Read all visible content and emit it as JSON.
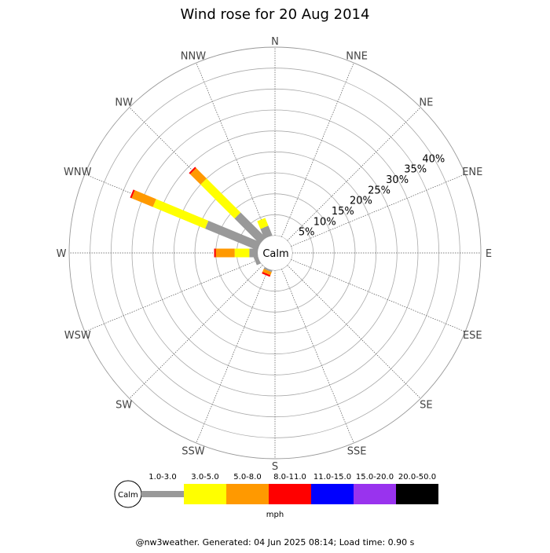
{
  "chart_data": {
    "type": "windrose",
    "title": "Wind rose for 20 Aug 2014",
    "directions": [
      "N",
      "NNE",
      "NE",
      "ENE",
      "E",
      "ESE",
      "SE",
      "SSE",
      "S",
      "SSW",
      "SW",
      "WSW",
      "W",
      "WNW",
      "NW",
      "NNW"
    ],
    "ring_labels": [
      "5%",
      "10%",
      "15%",
      "20%",
      "25%",
      "30%",
      "35%",
      "40%"
    ],
    "ring_values": [
      5,
      10,
      15,
      20,
      25,
      30,
      35,
      40
    ],
    "r_max": 45,
    "center_label": "Calm",
    "units_label": "mph",
    "speed_bins": [
      {
        "label": "1.0-3.0",
        "color": "#999999"
      },
      {
        "label": "3.0-5.0",
        "color": "#ffff00"
      },
      {
        "label": "5.0-8.0",
        "color": "#ff9900"
      },
      {
        "label": "8.0-11.0",
        "color": "#ff0000"
      },
      {
        "label": "11.0-15.0",
        "color": "#0000ff"
      },
      {
        "label": "15.0-20.0",
        "color": "#9933ee"
      },
      {
        "label": "20.0-50.0",
        "color": "#000000"
      }
    ],
    "series": [
      {
        "direction": "NNW",
        "values": [
          2.5,
          2.0,
          0,
          0,
          0,
          0,
          0
        ]
      },
      {
        "direction": "NW",
        "values": [
          8.5,
          11.5,
          3.5,
          0.4,
          0,
          0,
          0
        ]
      },
      {
        "direction": "WNW",
        "values": [
          13.5,
          13.5,
          5.5,
          0.4,
          0,
          0,
          0
        ]
      },
      {
        "direction": "W",
        "values": [
          2.0,
          3.5,
          4.5,
          0.4,
          0,
          0,
          0
        ]
      },
      {
        "direction": "WSW",
        "values": [
          1.0,
          0,
          0,
          0,
          0,
          0,
          0
        ]
      },
      {
        "direction": "SSW",
        "values": [
          0.4,
          0,
          0.8,
          0.4,
          0,
          0,
          0
        ]
      }
    ]
  },
  "footer": "@nw3weather. Generated: 04 Jun 2025 08:14; Load time: 0.90 s"
}
